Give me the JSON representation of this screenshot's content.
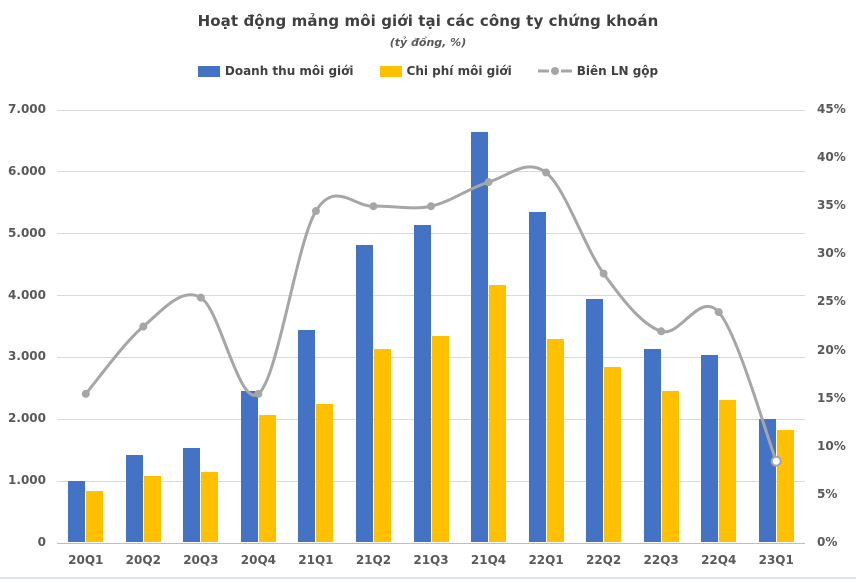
{
  "title": "Hoạt động mảng môi giới tại các công ty chứng khoán",
  "subtitle": "(tỷ đồng, %)",
  "colors": {
    "revenue_bar": "#4472c4",
    "cost_bar": "#ffc000",
    "margin_line": "#a6a6a6",
    "gridline": "#d9d9d9",
    "axis_text": "#595959",
    "title_text": "#404040"
  },
  "chart_data": {
    "type": "combo-bar-line",
    "title": "Hoạt động mảng môi giới tại các công ty chứng khoán",
    "subtitle": "(tỷ đồng, %)",
    "categories": [
      "20Q1",
      "20Q2",
      "20Q3",
      "20Q4",
      "21Q1",
      "21Q2",
      "21Q3",
      "21Q4",
      "22Q1",
      "22Q2",
      "22Q3",
      "22Q4",
      "23Q1"
    ],
    "series": [
      {
        "name": "Doanh thu môi giới",
        "type": "bar",
        "axis": "left",
        "color": "#4472c4",
        "values": [
          1010,
          1430,
          1530,
          2450,
          3440,
          4820,
          5140,
          6650,
          5350,
          3950,
          3130,
          3040,
          2000
        ]
      },
      {
        "name": "Chi phí môi giới",
        "type": "bar",
        "axis": "left",
        "color": "#ffc000",
        "values": [
          840,
          1090,
          1140,
          2070,
          2250,
          3140,
          3340,
          4170,
          3300,
          2850,
          2450,
          2310,
          1820
        ]
      },
      {
        "name": "Biên LN gộp",
        "type": "line",
        "axis": "right",
        "color": "#a6a6a6",
        "smooth": true,
        "last_marker_open": true,
        "values": [
          15.5,
          22.5,
          25.5,
          15.5,
          34.5,
          35,
          35,
          37.5,
          38.5,
          28,
          22,
          24,
          8.5
        ]
      }
    ],
    "left_axis": {
      "min": 0,
      "max": 7000,
      "step": 1000,
      "tick_labels": [
        "0",
        "1.000",
        "2.000",
        "3.000",
        "4.000",
        "5.000",
        "6.000",
        "7.000"
      ]
    },
    "right_axis": {
      "min": 0,
      "max": 45,
      "step": 5,
      "tick_labels": [
        "0%",
        "5%",
        "10%",
        "15%",
        "20%",
        "25%",
        "30%",
        "35%",
        "40%",
        "45%"
      ]
    },
    "grid": true,
    "legend_position": "top"
  }
}
